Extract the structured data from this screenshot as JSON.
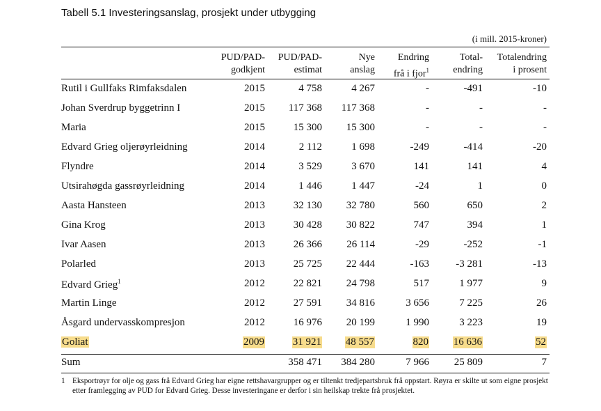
{
  "title": "Tabell 5.1 Investeringsanslag, prosjekt under utbygging",
  "units": "(i mill. 2015-kroner)",
  "headers": [
    [
      "PUD/PAD-",
      "godkjent"
    ],
    [
      "PUD/PAD-",
      "estimat"
    ],
    [
      "Nye",
      "anslag"
    ],
    [
      "Endring",
      "frå i fjor"
    ],
    [
      "Total-",
      "endring"
    ],
    [
      "Totalendring",
      "i prosent"
    ]
  ],
  "header_footnote_mark": "1",
  "rows": [
    {
      "name": "Rutil i Gullfaks Rimfaksdalen",
      "v": [
        "2015",
        "4 758",
        "4 267",
        "-",
        "-491",
        "-10"
      ]
    },
    {
      "name": "Johan Sverdrup byggetrinn I",
      "v": [
        "2015",
        "117 368",
        "117 368",
        "-",
        "-",
        "-"
      ]
    },
    {
      "name": "Maria",
      "v": [
        "2015",
        "15 300",
        "15 300",
        "-",
        "-",
        "-"
      ]
    },
    {
      "name": "Edvard Grieg oljerøyrleidning",
      "v": [
        "2014",
        "2 112",
        "1 698",
        "-249",
        "-414",
        "-20"
      ]
    },
    {
      "name": "Flyndre",
      "v": [
        "2014",
        "3 529",
        "3 670",
        "141",
        "141",
        "4"
      ]
    },
    {
      "name": "Utsirahøgda gassrøyrleidning",
      "v": [
        "2014",
        "1 446",
        "1 447",
        "-24",
        "1",
        "0"
      ]
    },
    {
      "name": "Aasta Hansteen",
      "v": [
        "2013",
        "32 130",
        "32 780",
        "560",
        "650",
        "2"
      ]
    },
    {
      "name": "Gina Krog",
      "v": [
        "2013",
        "30 428",
        "30 822",
        "747",
        "394",
        "1"
      ]
    },
    {
      "name": "Ivar Aasen",
      "v": [
        "2013",
        "26 366",
        "26 114",
        "-29",
        "-252",
        "-1"
      ]
    },
    {
      "name": "Polarled",
      "v": [
        "2013",
        "25 725",
        "22 444",
        "-163",
        "-3 281",
        "-13"
      ]
    },
    {
      "name": "Edvard Grieg",
      "sup": "1",
      "v": [
        "2012",
        "22 821",
        "24 798",
        "517",
        "1 977",
        "9"
      ]
    },
    {
      "name": "Martin Linge",
      "v": [
        "2012",
        "27 591",
        "34 816",
        "3 656",
        "7 225",
        "26"
      ]
    },
    {
      "name": "Åsgard undervasskompresjon",
      "v": [
        "2012",
        "16 976",
        "20 199",
        "1 990",
        "3 223",
        "19"
      ]
    },
    {
      "name": "Goliat",
      "highlighted": true,
      "v": [
        "2009",
        "31 921",
        "48 557",
        "820",
        "16 636",
        "52"
      ]
    }
  ],
  "sum": {
    "name": "Sum",
    "v": [
      "",
      "358 471",
      "384 280",
      "7 966",
      "25 809",
      "7"
    ]
  },
  "footnote": {
    "mark": "1",
    "text": "Eksportrøyr for olje og gass frå Edvard Grieg har eigne rettshavargrupper og er tiltenkt tredjepartsbruk frå oppstart. Røyra er skilte ut som eigne prosjekt etter framlegging av PUD for Edvard Grieg. Desse investeringane er derfor i sin heilskap trekte frå prosjektet."
  },
  "colors": {
    "highlight": "#f7dc8c"
  }
}
